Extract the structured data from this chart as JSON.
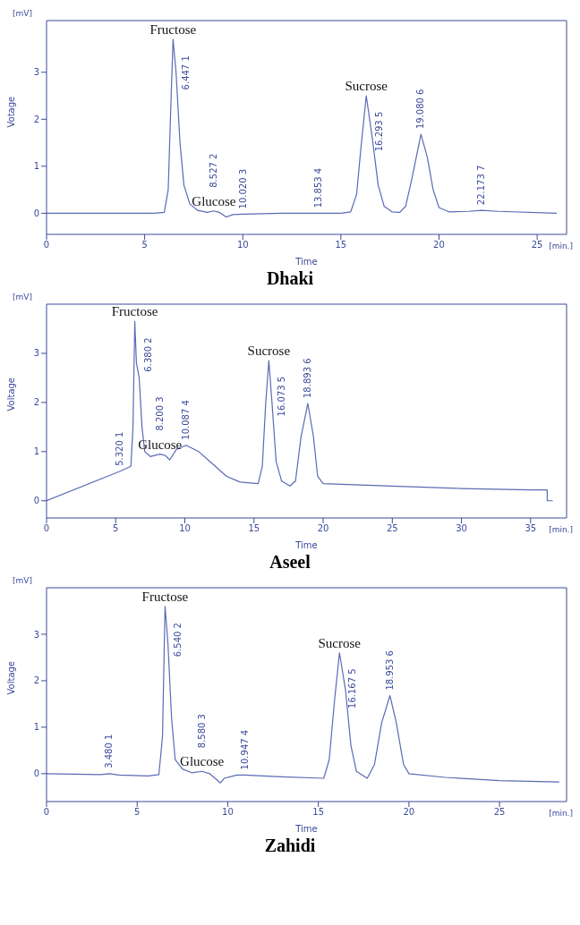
{
  "chart_data": [
    {
      "type": "line",
      "title": "Dhaki",
      "xlabel": "Time",
      "ylabel": "Votage",
      "xlim": [
        0,
        26.5
      ],
      "xticks": [
        0,
        5,
        10,
        15,
        20,
        25
      ],
      "ylim": [
        -0.45,
        4.1
      ],
      "yticks": [
        0,
        1,
        2,
        3
      ],
      "grid": false,
      "legend": false,
      "marker": "none",
      "color": "#5a6bb5",
      "x": [
        0,
        5.5,
        6.0,
        6.2,
        6.35,
        6.447,
        6.6,
        6.8,
        7.0,
        7.3,
        7.7,
        8.2,
        8.527,
        8.8,
        9.15,
        9.5,
        10.02,
        12,
        13.853,
        15,
        15.5,
        15.8,
        16.0,
        16.293,
        16.6,
        16.9,
        17.2,
        17.6,
        18.0,
        18.3,
        18.6,
        19.08,
        19.4,
        19.7,
        20.0,
        20.5,
        21.5,
        22.173,
        23,
        26
      ],
      "values": [
        0,
        0,
        0.02,
        0.5,
        2.5,
        3.7,
        3.0,
        1.5,
        0.6,
        0.2,
        0.06,
        0.02,
        0.05,
        0.02,
        -0.08,
        -0.03,
        -0.02,
        0,
        0,
        0,
        0.03,
        0.4,
        1.3,
        2.5,
        1.6,
        0.6,
        0.15,
        0.03,
        0.02,
        0.15,
        0.7,
        1.68,
        1.2,
        0.5,
        0.12,
        0.03,
        0.04,
        0.06,
        0.04,
        0
      ],
      "annotations": [
        "[mV]",
        "[min.]",
        {
          "text": "Fructose",
          "x": 6.447,
          "y": 3.7
        },
        {
          "text": "6.447  1",
          "x": 6.447,
          "y": 3.7
        },
        {
          "text": "Glucose",
          "x": 8.527,
          "y": 0.05
        },
        {
          "text": "8.527  2",
          "x": 8.527,
          "y": 0.05
        },
        {
          "text": "10.020  3",
          "x": 10.02,
          "y": -0.02
        },
        {
          "text": "13.853  4",
          "x": 13.853,
          "y": 0
        },
        {
          "text": "Sucrose",
          "x": 16.293,
          "y": 2.5
        },
        {
          "text": "16.293  5",
          "x": 16.293,
          "y": 2.5
        },
        {
          "text": "19.080  6",
          "x": 19.08,
          "y": 1.68
        },
        {
          "text": "22.173  7",
          "x": 22.173,
          "y": 0.06
        }
      ]
    },
    {
      "type": "line",
      "title": "Aseel",
      "xlabel": "Time",
      "ylabel": "Voltage",
      "xlim": [
        0,
        37.6
      ],
      "xticks": [
        0,
        5,
        10,
        15,
        20,
        25,
        30,
        35
      ],
      "ylim": [
        -0.35,
        4.0
      ],
      "yticks": [
        0,
        1,
        2,
        3
      ],
      "grid": false,
      "legend": false,
      "marker": "none",
      "color": "#5a6bb5",
      "x": [
        0,
        5.32,
        6.1,
        6.25,
        6.38,
        6.5,
        6.7,
        6.9,
        7.1,
        7.5,
        8.2,
        8.6,
        8.9,
        9.4,
        10.087,
        11,
        12,
        13,
        14,
        15.3,
        15.6,
        15.85,
        16.073,
        16.3,
        16.6,
        17.0,
        17.6,
        18.0,
        18.4,
        18.893,
        19.3,
        19.6,
        20.0,
        25,
        30,
        35,
        36.2,
        36.2,
        36.6
      ],
      "values": [
        0,
        0.6,
        0.7,
        1.5,
        3.65,
        2.8,
        2.5,
        1.5,
        1.0,
        0.9,
        0.95,
        0.92,
        0.83,
        1.05,
        1.13,
        1.0,
        0.75,
        0.5,
        0.38,
        0.35,
        0.7,
        2.0,
        2.85,
        2.0,
        0.8,
        0.4,
        0.3,
        0.4,
        1.3,
        1.98,
        1.3,
        0.5,
        0.35,
        0.3,
        0.25,
        0.22,
        0.22,
        0,
        0
      ],
      "annotations": [
        "[mV]",
        "[min.]",
        {
          "text": "5.320  1",
          "x": 5.32,
          "y": 0.6
        },
        {
          "text": "Fructose",
          "x": 6.38,
          "y": 3.65
        },
        {
          "text": "6.380  2",
          "x": 6.38,
          "y": 3.65
        },
        {
          "text": "Glucose",
          "x": 8.2,
          "y": 0.95
        },
        {
          "text": "8.200  3",
          "x": 8.2,
          "y": 0.95
        },
        {
          "text": "10.087  4",
          "x": 10.087,
          "y": 1.13
        },
        {
          "text": "Sucrose",
          "x": 16.073,
          "y": 2.85
        },
        {
          "text": "16.073  5",
          "x": 16.073,
          "y": 2.85
        },
        {
          "text": "18.893  6",
          "x": 18.893,
          "y": 1.98
        }
      ]
    },
    {
      "type": "line",
      "title": "Zahidi",
      "xlabel": "Time",
      "ylabel": "Voltage",
      "xlim": [
        0,
        28.7
      ],
      "xticks": [
        0,
        5,
        10,
        15,
        20,
        25
      ],
      "ylim": [
        -0.6,
        4.0
      ],
      "yticks": [
        0,
        1,
        2,
        3
      ],
      "grid": false,
      "legend": false,
      "marker": "none",
      "color": "#5a6bb5",
      "x": [
        0,
        3,
        3.48,
        4,
        5.6,
        6.2,
        6.4,
        6.54,
        6.7,
        6.9,
        7.1,
        7.5,
        8.0,
        8.58,
        9.0,
        9.6,
        9.8,
        10.5,
        10.947,
        13,
        15.3,
        15.6,
        15.9,
        16.167,
        16.5,
        16.8,
        17.1,
        17.7,
        18.1,
        18.5,
        18.953,
        19.3,
        19.7,
        20,
        22,
        25,
        28.3
      ],
      "values": [
        0,
        -0.02,
        0,
        -0.03,
        -0.05,
        -0.02,
        0.8,
        3.6,
        2.8,
        1.2,
        0.3,
        0.1,
        0.02,
        0.05,
        0,
        -0.2,
        -0.1,
        -0.03,
        -0.03,
        -0.07,
        -0.1,
        0.3,
        1.6,
        2.6,
        1.8,
        0.6,
        0.05,
        -0.1,
        0.2,
        1.1,
        1.68,
        1.1,
        0.2,
        0,
        -0.08,
        -0.15,
        -0.18
      ],
      "annotations": [
        "[mV]",
        "[min.]",
        {
          "text": "3.480  1",
          "x": 3.48,
          "y": 0
        },
        {
          "text": "Fructose",
          "x": 6.54,
          "y": 3.6
        },
        {
          "text": "6.540  2",
          "x": 6.54,
          "y": 3.6
        },
        {
          "text": "Glucose",
          "x": 8.58,
          "y": 0.05
        },
        {
          "text": "8.580  3",
          "x": 8.58,
          "y": 0.05
        },
        {
          "text": "10.947  4",
          "x": 10.947,
          "y": -0.03
        },
        {
          "text": "Sucrose",
          "x": 16.167,
          "y": 2.6
        },
        {
          "text": "16.167  5",
          "x": 16.167,
          "y": 2.6
        },
        {
          "text": "18.953  6",
          "x": 18.953,
          "y": 1.68
        }
      ]
    }
  ]
}
